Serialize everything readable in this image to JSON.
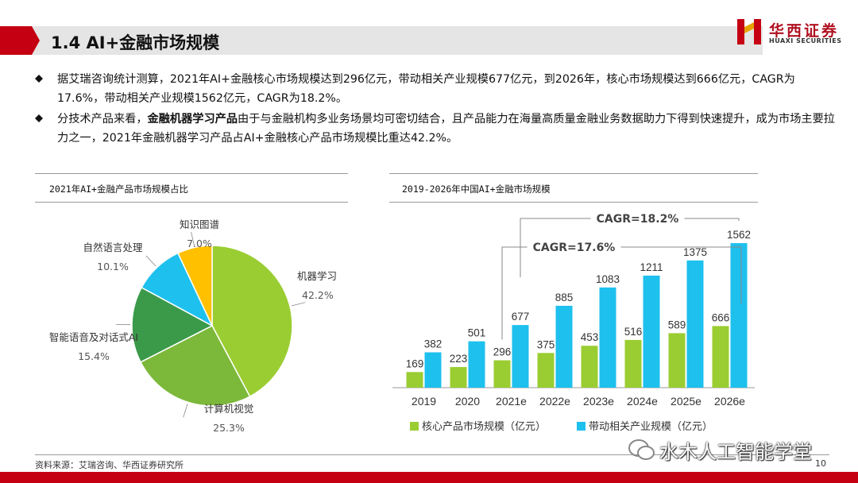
{
  "header": {
    "title": "1.4 AI+金融市场规模",
    "logo_cn": "华西证券",
    "logo_en": "HUAXI SECURITIES",
    "accent_color": "#c40012"
  },
  "bullets": [
    {
      "text": "据艾瑞咨询统计测算，2021年AI+金融核心市场规模达到296亿元，带动相关产业规模677亿元，到2026年，核心市场规模达到666亿元，CAGR为17.6%，带动相关产业规模1562亿元，CAGR为18.2%。"
    },
    {
      "pre": "分技术产品来看，",
      "bold": "金融机器学习产品",
      "post": "由于与金融机构多业务场景均可密切结合，且产品能力在海量高质量金融业务数据助力下得到快速提升，成为市场主要拉力之一，2021年金融机器学习产品占AI+金融核心产品市场规模比重达42.2%。"
    }
  ],
  "chart_data": [
    {
      "type": "pie",
      "title": "2021年AI+金融产品市场规模占比",
      "slices": [
        {
          "label": "机器学习",
          "value": 42.2,
          "display": "42.2%",
          "color": "#9acd32"
        },
        {
          "label": "计算机视觉",
          "value": 25.3,
          "display": "25.3%",
          "color": "#7cb83a"
        },
        {
          "label": "智能语音及对话式AI",
          "value": 15.4,
          "display": "15.4%",
          "color": "#3a9a4a"
        },
        {
          "label": "自然语言处理",
          "value": 10.1,
          "display": "10.1%",
          "color": "#1ec0ee"
        },
        {
          "label": "知识图谱",
          "value": 7.0,
          "display": "7.0%",
          "color": "#ffc000"
        }
      ]
    },
    {
      "type": "bar",
      "title": "2019-2026年中国AI+金融市场规模",
      "categories": [
        "2019",
        "2020",
        "2021e",
        "2022e",
        "2023e",
        "2024e",
        "2025e",
        "2026e"
      ],
      "series": [
        {
          "name": "核心产品市场规模（亿元）",
          "color": "#9acd32",
          "values": [
            169,
            223,
            296,
            375,
            453,
            516,
            589,
            666
          ]
        },
        {
          "name": "带动相关产业规模（亿元）",
          "color": "#1ec0ee",
          "values": [
            382,
            501,
            677,
            885,
            1083,
            1211,
            1375,
            1562
          ]
        }
      ],
      "ylim": [
        0,
        1700
      ],
      "annotations": [
        {
          "text": "CAGR=18.2%",
          "from_category": "2021e",
          "to_category": "2026e",
          "series": "带动相关产业规模（亿元）"
        },
        {
          "text": "CAGR=17.6%",
          "from_category": "2021e",
          "to_category": "2026e",
          "series": "核心产品市场规模（亿元）"
        }
      ],
      "legend": "bottom"
    }
  ],
  "footer": {
    "source": "资料来源：艾瑞咨询、华西证券研究所",
    "page": "10",
    "watermark": "水木人工智能学堂"
  }
}
